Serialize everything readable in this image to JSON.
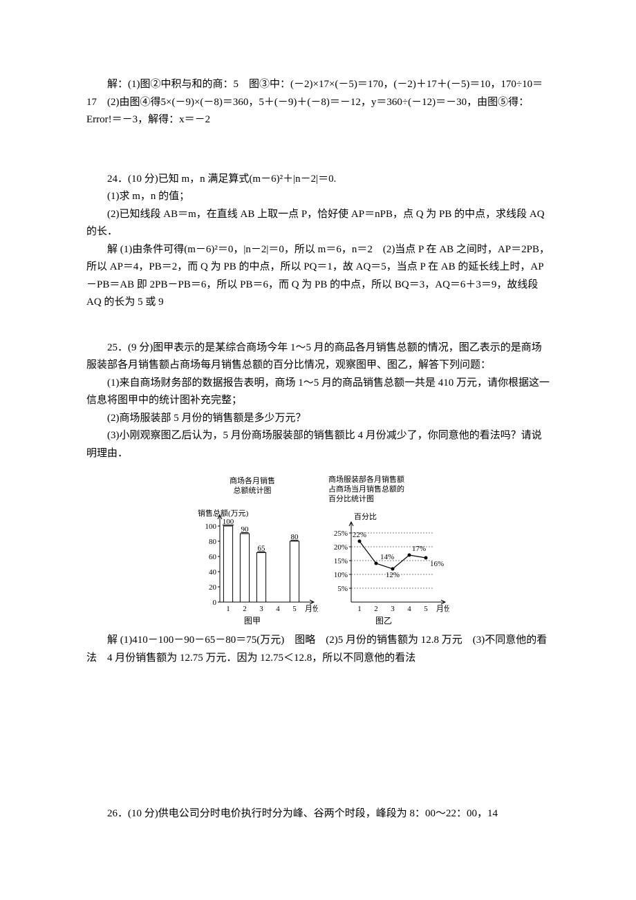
{
  "sol23_p1": "解：(1)图②中积与和的商：5　图③中：(－2)×17×(－5)＝170，(－2)＋17＋(－5)＝10，170÷10＝17　(2)由图④得5×(－9)×(－8)＝360，5＋(－9)＋(－8)＝－12，y＝360÷(－12)＝－30，由图⑤得：Error!＝－3，解得：x＝－2",
  "q24_a": "24．(10 分)已知 m，n 满足算式(m－6)²＋|n－2|＝0.",
  "q24_b": "(1)求 m，n 的值；",
  "q24_c": "(2)已知线段 AB＝m，在直线 AB 上取一点 P，恰好使 AP＝nPB，点 Q 为 PB 的中点，求线段 AQ 的长．",
  "sol24": "解 (1)由条件可得(m－6)²＝0，|n－2|＝0，所以 m＝6，n＝2　(2)当点 P 在 AB 之间时，AP＝2PB，所以 AP＝4，PB＝2，而 Q 为 PB 的中点，所以 PQ＝1，故 AQ＝5，当点 P 在 AB 的延长线上时，AP－PB＝AB 即 2PB－PB＝6，所以 PB＝6，而 Q 为 PB 的中点，所以 BQ＝3，AQ＝6＋3＝9，故线段 AQ 的长为 5 或 9",
  "q25_a": "25．(9 分)图甲表示的是某综合商场今年 1～5 月的商品各月销售总额的情况，图乙表示的是商场服装部各月销售额占商场每月销售总额的百分比情况，观察图甲、图乙，解答下列问题：",
  "q25_b": "(1)来自商场财务部的数据报告表明，商场 1～5 月的商品销售总额一共是 410 万元，请你根据这一信息将图甲中的统计图补充完整；",
  "q25_c": "(2)商场服装部 5 月份的销售额是多少万元？",
  "q25_d": "(3)小刚观察图乙后认为，5 月份商场服装部的销售额比 4 月份减少了，你同意他的看法吗？请说明理由．",
  "sol25": "解 (1)410－100－90－65－80＝75(万元)　图略　(2)5 月份的销售额为 12.8 万元　(3)不同意他的看法　4 月份销售额为 12.75 万元．因为 12.75＜12.8，所以不同意他的看法",
  "q26_a": "26．(10 分)供电公司分时电价执行时分为峰、谷两个时段，峰段为 8：00～22：00，14",
  "chartA": {
    "type": "bar",
    "title1": "商场各月销售",
    "title2": "总额统计图",
    "y_label": "销售总额(万元)",
    "x_label": "月份",
    "x_categories": [
      "1",
      "2",
      "3",
      "4",
      "5"
    ],
    "y_ticks": [
      0,
      20,
      40,
      60,
      80,
      100
    ],
    "values": [
      100,
      90,
      65,
      null,
      80
    ],
    "value_labels": [
      "100",
      "90",
      "65",
      "",
      "80"
    ],
    "caption": "图甲",
    "bar_color": "#ffffff",
    "bar_border": "#000000",
    "axis_color": "#000000",
    "font_size": 11
  },
  "chartB": {
    "type": "line",
    "title1": "商场服装部各月销售额",
    "title2": "占商场当月销售总额的",
    "title3": "百分比统计图",
    "y_label": "百分比",
    "x_label": "月份",
    "x_categories": [
      "1",
      "2",
      "3",
      "4",
      "5"
    ],
    "y_ticks": [
      "5%",
      "10%",
      "15%",
      "20%",
      "25%"
    ],
    "y_values": [
      5,
      10,
      15,
      20,
      25
    ],
    "values": [
      22,
      14,
      12,
      17,
      16
    ],
    "value_labels": [
      "22%",
      "14%",
      "12%",
      "17%",
      "16%"
    ],
    "caption": "图乙",
    "line_color": "#000000",
    "marker_color": "#000000",
    "axis_color": "#000000",
    "font_size": 11
  }
}
